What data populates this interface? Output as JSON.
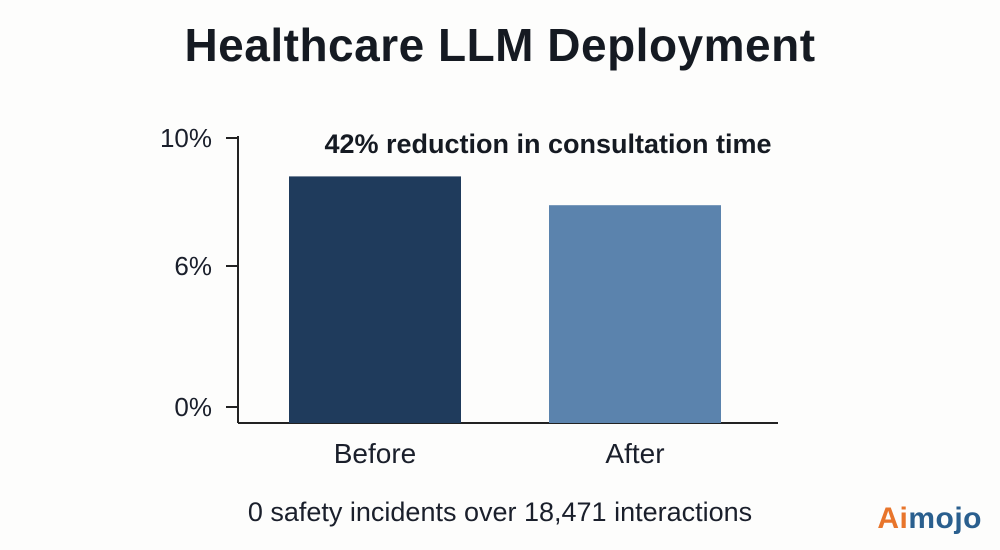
{
  "title": "Healthcare  LLM Deployment",
  "footer_note": "0 safety incidents over 18,471 interactions",
  "logo": {
    "ai": "Ai",
    "mojo": "mojo"
  },
  "colors": {
    "before_bar": "#1f3b5c",
    "after_bar": "#5b83ad",
    "axis": "#222222"
  },
  "chart_data": {
    "type": "bar",
    "title": "Healthcare  LLM Deployment",
    "annotation": "42% reduction in consultation time",
    "categories": [
      "Before",
      "After"
    ],
    "values": [
      8.8,
      7.9
    ],
    "ylim": [
      0,
      10
    ],
    "yticks": [
      {
        "value": 0,
        "label": "0%"
      },
      {
        "value": 6,
        "label": "6%"
      },
      {
        "value": 10,
        "label": "10%"
      }
    ],
    "xlabel": "",
    "ylabel": "",
    "grid": false,
    "legend": "none"
  }
}
